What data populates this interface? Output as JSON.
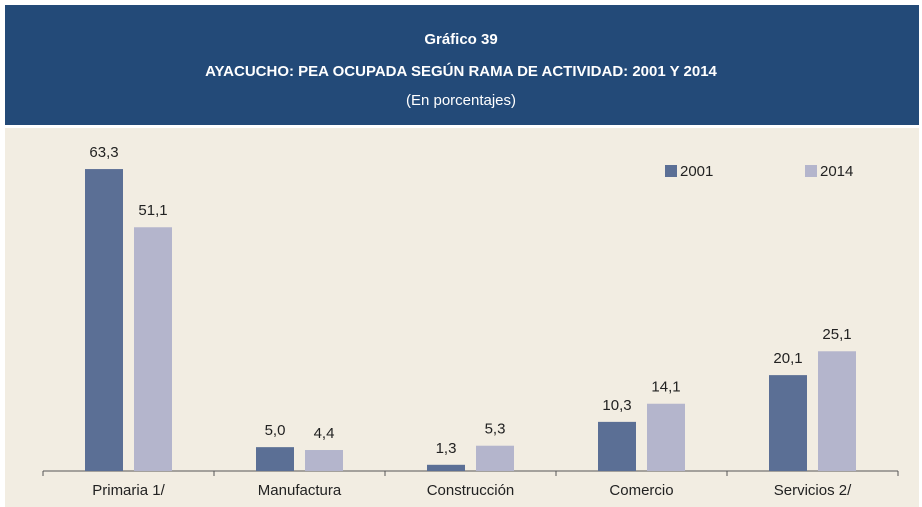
{
  "chart_data": {
    "type": "bar",
    "label": "Gráfico 39",
    "title": "AYACUCHO: PEA OCUPADA SEGÚN RAMA DE ACTIVIDAD: 2001 Y 2014",
    "subtitle": "(En porcentajes)",
    "categories": [
      "Primaria 1/",
      "Manufactura",
      "Construcción",
      "Comercio",
      "Servicios 2/"
    ],
    "series": [
      {
        "name": "2001",
        "color": "#5b6f95",
        "values": [
          63.3,
          5.0,
          1.3,
          10.3,
          20.1
        ],
        "value_labels": [
          "63,3",
          "5,0",
          "1,3",
          "10,3",
          "20,1"
        ]
      },
      {
        "name": "2014",
        "color": "#b4b5cc",
        "values": [
          51.1,
          4.4,
          5.3,
          14.1,
          25.1
        ],
        "value_labels": [
          "51,1",
          "4,4",
          "5,3",
          "14,1",
          "25,1"
        ]
      }
    ],
    "legend": "top-right"
  }
}
